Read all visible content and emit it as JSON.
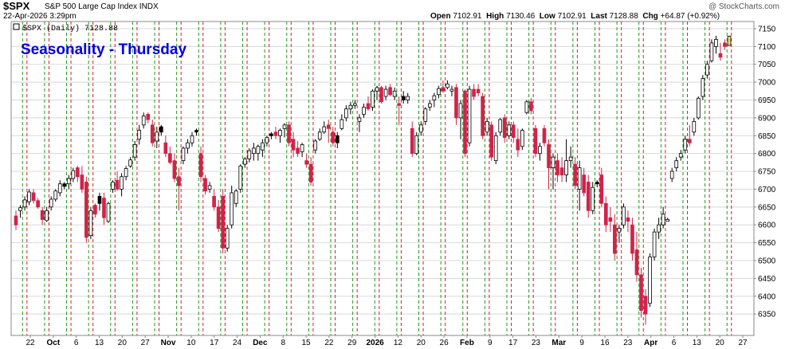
{
  "header": {
    "symbol": "$SPX",
    "name": "S&P 500 Large Cap Index",
    "exchange": "INDX",
    "copyright": "@ StockCharts.com",
    "date": "22-Apr-2026 3:29pm",
    "open_label": "Open",
    "open_value": "7102.91",
    "high_label": "High",
    "high_value": "7130.46",
    "low_label": "Low",
    "low_value": "7102.91",
    "last_label": "Last",
    "last_value": "7128.88",
    "chg_label": "Chg",
    "chg_value": "+64.87 (+0.92%)"
  },
  "legend": "$SPX (Daily) 7128.88",
  "chart_data": {
    "type": "candlestick",
    "title": "Seasonality - Thursday",
    "title_color": "#0000e6",
    "ylim": [
      6290,
      7170
    ],
    "y_ticks": [
      6350,
      6400,
      6450,
      6500,
      6550,
      6600,
      6650,
      6700,
      6750,
      6800,
      6850,
      6900,
      6950,
      7000,
      7050,
      7100,
      7150
    ],
    "x_labels": [
      {
        "label": "22",
        "bold": false
      },
      {
        "label": "Oct",
        "bold": true
      },
      {
        "label": "6",
        "bold": false
      },
      {
        "label": "13",
        "bold": false
      },
      {
        "label": "20",
        "bold": false
      },
      {
        "label": "27",
        "bold": false
      },
      {
        "label": "Nov",
        "bold": true
      },
      {
        "label": "10",
        "bold": false
      },
      {
        "label": "17",
        "bold": false
      },
      {
        "label": "24",
        "bold": false
      },
      {
        "label": "Dec",
        "bold": true
      },
      {
        "label": "8",
        "bold": false
      },
      {
        "label": "15",
        "bold": false
      },
      {
        "label": "22",
        "bold": false
      },
      {
        "label": "29",
        "bold": false
      },
      {
        "label": "2026",
        "bold": true
      },
      {
        "label": "12",
        "bold": false
      },
      {
        "label": "20",
        "bold": false
      },
      {
        "label": "26",
        "bold": false
      },
      {
        "label": "Feb",
        "bold": true
      },
      {
        "label": "9",
        "bold": false
      },
      {
        "label": "17",
        "bold": false
      },
      {
        "label": "23",
        "bold": false
      },
      {
        "label": "Mar",
        "bold": true
      },
      {
        "label": "9",
        "bold": false
      },
      {
        "label": "16",
        "bold": false
      },
      {
        "label": "23",
        "bold": false
      },
      {
        "label": "Apr",
        "bold": true
      },
      {
        "label": "6",
        "bold": false
      },
      {
        "label": "13",
        "bold": false
      },
      {
        "label": "20",
        "bold": false
      },
      {
        "label": "27",
        "bold": false
      }
    ],
    "colors": {
      "up": "#ffffff",
      "down": "#d1234a",
      "neutral": "#000000",
      "last": "#f2e07a",
      "green_line": "#1a9a1a",
      "red_line": "#d42020",
      "grid": "#d8d8d8"
    },
    "candles": [
      {
        "o": 6625,
        "h": 6640,
        "l": 6585,
        "c": 6600
      },
      {
        "o": 6640,
        "h": 6655,
        "l": 6620,
        "c": 6648
      },
      {
        "o": 6650,
        "h": 6680,
        "l": 6640,
        "c": 6670
      },
      {
        "o": 6665,
        "h": 6700,
        "l": 6655,
        "c": 6692
      },
      {
        "o": 6690,
        "h": 6700,
        "l": 6660,
        "c": 6668
      },
      {
        "o": 6668,
        "h": 6675,
        "l": 6645,
        "c": 6650
      },
      {
        "o": 6640,
        "h": 6650,
        "l": 6600,
        "c": 6615
      },
      {
        "o": 6612,
        "h": 6650,
        "l": 6608,
        "c": 6640
      },
      {
        "o": 6650,
        "h": 6680,
        "l": 6640,
        "c": 6672
      },
      {
        "o": 6672,
        "h": 6700,
        "l": 6665,
        "c": 6695
      },
      {
        "o": 6690,
        "h": 6725,
        "l": 6680,
        "c": 6715
      },
      {
        "o": 6715,
        "h": 6720,
        "l": 6700,
        "c": 6708,
        "n": true
      },
      {
        "o": 6715,
        "h": 6740,
        "l": 6700,
        "c": 6730
      },
      {
        "o": 6730,
        "h": 6760,
        "l": 6720,
        "c": 6752
      },
      {
        "o": 6760,
        "h": 6765,
        "l": 6720,
        "c": 6735
      },
      {
        "o": 6740,
        "h": 6765,
        "l": 6690,
        "c": 6700
      },
      {
        "o": 6720,
        "h": 6735,
        "l": 6550,
        "c": 6565
      },
      {
        "o": 6570,
        "h": 6650,
        "l": 6560,
        "c": 6640
      },
      {
        "o": 6655,
        "h": 6660,
        "l": 6620,
        "c": 6630
      },
      {
        "o": 6660,
        "h": 6690,
        "l": 6640,
        "c": 6680,
        "n": true
      },
      {
        "o": 6675,
        "h": 6690,
        "l": 6600,
        "c": 6620
      },
      {
        "o": 6610,
        "h": 6665,
        "l": 6605,
        "c": 6660
      },
      {
        "o": 6700,
        "h": 6725,
        "l": 6690,
        "c": 6720
      },
      {
        "o": 6725,
        "h": 6750,
        "l": 6695,
        "c": 6700
      },
      {
        "o": 6700,
        "h": 6745,
        "l": 6680,
        "c": 6735
      },
      {
        "o": 6735,
        "h": 6765,
        "l": 6725,
        "c": 6758
      },
      {
        "o": 6765,
        "h": 6790,
        "l": 6760,
        "c": 6782
      },
      {
        "o": 6790,
        "h": 6835,
        "l": 6780,
        "c": 6825
      },
      {
        "o": 6840,
        "h": 6880,
        "l": 6825,
        "c": 6865
      },
      {
        "o": 6880,
        "h": 6915,
        "l": 6870,
        "c": 6905
      },
      {
        "o": 6910,
        "h": 6915,
        "l": 6885,
        "c": 6895
      },
      {
        "o": 6880,
        "h": 6895,
        "l": 6820,
        "c": 6830
      },
      {
        "o": 6835,
        "h": 6875,
        "l": 6815,
        "c": 6860
      },
      {
        "o": 6860,
        "h": 6880,
        "l": 6850,
        "c": 6875,
        "n": true
      },
      {
        "o": 6830,
        "h": 6850,
        "l": 6790,
        "c": 6800
      },
      {
        "o": 6800,
        "h": 6820,
        "l": 6770,
        "c": 6775
      },
      {
        "o": 6780,
        "h": 6800,
        "l": 6720,
        "c": 6730
      },
      {
        "o": 6735,
        "h": 6760,
        "l": 6640,
        "c": 6710
      },
      {
        "o": 6780,
        "h": 6820,
        "l": 6770,
        "c": 6815
      },
      {
        "o": 6815,
        "h": 6840,
        "l": 6800,
        "c": 6830
      },
      {
        "o": 6830,
        "h": 6860,
        "l": 6820,
        "c": 6850
      },
      {
        "o": 6860,
        "h": 6870,
        "l": 6850,
        "c": 6865,
        "n": true
      },
      {
        "o": 6800,
        "h": 6820,
        "l": 6720,
        "c": 6735
      },
      {
        "o": 6730,
        "h": 6740,
        "l": 6685,
        "c": 6695
      },
      {
        "o": 6700,
        "h": 6720,
        "l": 6690,
        "c": 6710
      },
      {
        "o": 6680,
        "h": 6700,
        "l": 6640,
        "c": 6650
      },
      {
        "o": 6650,
        "h": 6670,
        "l": 6580,
        "c": 6590
      },
      {
        "o": 6680,
        "h": 6700,
        "l": 6520,
        "c": 6535
      },
      {
        "o": 6535,
        "h": 6600,
        "l": 6525,
        "c": 6590
      },
      {
        "o": 6600,
        "h": 6710,
        "l": 6590,
        "c": 6690
      },
      {
        "o": 6660,
        "h": 6700,
        "l": 6650,
        "c": 6695
      },
      {
        "o": 6700,
        "h": 6770,
        "l": 6690,
        "c": 6765
      },
      {
        "o": 6770,
        "h": 6790,
        "l": 6760,
        "c": 6785
      },
      {
        "o": 6785,
        "h": 6815,
        "l": 6775,
        "c": 6808
      },
      {
        "o": 6800,
        "h": 6830,
        "l": 6780,
        "c": 6815
      },
      {
        "o": 6800,
        "h": 6825,
        "l": 6780,
        "c": 6820
      },
      {
        "o": 6810,
        "h": 6840,
        "l": 6790,
        "c": 6830
      },
      {
        "o": 6830,
        "h": 6850,
        "l": 6820,
        "c": 6845
      },
      {
        "o": 6850,
        "h": 6860,
        "l": 6840,
        "c": 6855,
        "n": true
      },
      {
        "o": 6860,
        "h": 6875,
        "l": 6840,
        "c": 6850
      },
      {
        "o": 6850,
        "h": 6870,
        "l": 6830,
        "c": 6865
      },
      {
        "o": 6870,
        "h": 6885,
        "l": 6845,
        "c": 6880
      },
      {
        "o": 6880,
        "h": 6890,
        "l": 6820,
        "c": 6830
      },
      {
        "o": 6840,
        "h": 6860,
        "l": 6790,
        "c": 6810
      },
      {
        "o": 6815,
        "h": 6835,
        "l": 6790,
        "c": 6800
      },
      {
        "o": 6805,
        "h": 6830,
        "l": 6790,
        "c": 6825
      },
      {
        "o": 6780,
        "h": 6800,
        "l": 6760,
        "c": 6770
      },
      {
        "o": 6770,
        "h": 6790,
        "l": 6710,
        "c": 6720
      },
      {
        "o": 6810,
        "h": 6840,
        "l": 6800,
        "c": 6835
      },
      {
        "o": 6840,
        "h": 6870,
        "l": 6835,
        "c": 6860
      },
      {
        "o": 6860,
        "h": 6890,
        "l": 6855,
        "c": 6875
      },
      {
        "o": 6880,
        "h": 6895,
        "l": 6830,
        "c": 6870
      },
      {
        "o": 6860,
        "h": 6875,
        "l": 6820,
        "c": 6830
      },
      {
        "o": 6830,
        "h": 6860,
        "l": 6815,
        "c": 6850,
        "n": true
      },
      {
        "o": 6870,
        "h": 6910,
        "l": 6865,
        "c": 6895
      },
      {
        "o": 6900,
        "h": 6935,
        "l": 6890,
        "c": 6925
      },
      {
        "o": 6925,
        "h": 6945,
        "l": 6910,
        "c": 6935
      },
      {
        "o": 6935,
        "h": 6950,
        "l": 6925,
        "c": 6940
      },
      {
        "o": 6890,
        "h": 6910,
        "l": 6860,
        "c": 6900
      },
      {
        "o": 6910,
        "h": 6940,
        "l": 6900,
        "c": 6930
      },
      {
        "o": 6940,
        "h": 6960,
        "l": 6920,
        "c": 6925
      },
      {
        "o": 6930,
        "h": 6980,
        "l": 6920,
        "c": 6975
      },
      {
        "o": 6975,
        "h": 6990,
        "l": 6950,
        "c": 6985
      },
      {
        "o": 6985,
        "h": 6990,
        "l": 6940,
        "c": 6945
      },
      {
        "o": 6960,
        "h": 6990,
        "l": 6950,
        "c": 6980
      },
      {
        "o": 6985,
        "h": 6995,
        "l": 6960,
        "c": 6965
      },
      {
        "o": 6960,
        "h": 6985,
        "l": 6950,
        "c": 6975
      },
      {
        "o": 6940,
        "h": 6960,
        "l": 6880,
        "c": 6935
      },
      {
        "o": 6960,
        "h": 6975,
        "l": 6940,
        "c": 6950,
        "n": true
      },
      {
        "o": 6950,
        "h": 6970,
        "l": 6940,
        "c": 6960
      },
      {
        "o": 6870,
        "h": 6890,
        "l": 6790,
        "c": 6800
      },
      {
        "o": 6800,
        "h": 6860,
        "l": 6795,
        "c": 6850
      },
      {
        "o": 6860,
        "h": 6890,
        "l": 6850,
        "c": 6880
      },
      {
        "o": 6890,
        "h": 6930,
        "l": 6880,
        "c": 6925
      },
      {
        "o": 6930,
        "h": 6950,
        "l": 6920,
        "c": 6940
      },
      {
        "o": 6950,
        "h": 6970,
        "l": 6930,
        "c": 6962
      },
      {
        "o": 6965,
        "h": 6990,
        "l": 6955,
        "c": 6982
      },
      {
        "o": 6985,
        "h": 7005,
        "l": 6970,
        "c": 6975
      },
      {
        "o": 6985,
        "h": 7005,
        "l": 6980,
        "c": 6995
      },
      {
        "o": 6975,
        "h": 6990,
        "l": 6960,
        "c": 6980
      },
      {
        "o": 6985,
        "h": 6995,
        "l": 6880,
        "c": 6900
      },
      {
        "o": 6900,
        "h": 6950,
        "l": 6840,
        "c": 6940
      },
      {
        "o": 6975,
        "h": 6980,
        "l": 6790,
        "c": 6800
      },
      {
        "o": 6830,
        "h": 6990,
        "l": 6820,
        "c": 6980
      },
      {
        "o": 6980,
        "h": 6995,
        "l": 6950,
        "c": 6960
      },
      {
        "o": 6980,
        "h": 6995,
        "l": 6960,
        "c": 6970
      },
      {
        "o": 6960,
        "h": 6970,
        "l": 6840,
        "c": 6850
      },
      {
        "o": 6860,
        "h": 6900,
        "l": 6850,
        "c": 6890
      },
      {
        "o": 6880,
        "h": 6890,
        "l": 6780,
        "c": 6790
      },
      {
        "o": 6780,
        "h": 6860,
        "l": 6770,
        "c": 6850
      },
      {
        "o": 6860,
        "h": 6900,
        "l": 6850,
        "c": 6895
      },
      {
        "o": 6900,
        "h": 6910,
        "l": 6830,
        "c": 6845
      },
      {
        "o": 6850,
        "h": 6890,
        "l": 6840,
        "c": 6880
      },
      {
        "o": 6880,
        "h": 6890,
        "l": 6830,
        "c": 6845
      },
      {
        "o": 6840,
        "h": 6870,
        "l": 6790,
        "c": 6810
      },
      {
        "o": 6820,
        "h": 6870,
        "l": 6810,
        "c": 6865
      },
      {
        "o": 6915,
        "h": 6950,
        "l": 6910,
        "c": 6945
      },
      {
        "o": 6945,
        "h": 6955,
        "l": 6910,
        "c": 6920
      },
      {
        "o": 6870,
        "h": 6880,
        "l": 6790,
        "c": 6800
      },
      {
        "o": 6800,
        "h": 6830,
        "l": 6780,
        "c": 6820
      },
      {
        "o": 6870,
        "h": 6880,
        "l": 6820,
        "c": 6830
      },
      {
        "o": 6825,
        "h": 6840,
        "l": 6700,
        "c": 6760
      },
      {
        "o": 6760,
        "h": 6800,
        "l": 6700,
        "c": 6790
      },
      {
        "o": 6780,
        "h": 6800,
        "l": 6720,
        "c": 6740
      },
      {
        "o": 6760,
        "h": 6790,
        "l": 6720,
        "c": 6740
      },
      {
        "o": 6740,
        "h": 6840,
        "l": 6720,
        "c": 6780
      },
      {
        "o": 6780,
        "h": 6820,
        "l": 6760,
        "c": 6790
      },
      {
        "o": 6770,
        "h": 6790,
        "l": 6700,
        "c": 6710
      },
      {
        "o": 6700,
        "h": 6780,
        "l": 6640,
        "c": 6760
      },
      {
        "o": 6740,
        "h": 6760,
        "l": 6680,
        "c": 6690
      },
      {
        "o": 6720,
        "h": 6740,
        "l": 6620,
        "c": 6640
      },
      {
        "o": 6640,
        "h": 6720,
        "l": 6630,
        "c": 6705
      },
      {
        "o": 6715,
        "h": 6725,
        "l": 6705,
        "c": 6720,
        "n": true
      },
      {
        "o": 6740,
        "h": 6760,
        "l": 6650,
        "c": 6660
      },
      {
        "o": 6660,
        "h": 6680,
        "l": 6580,
        "c": 6600
      },
      {
        "o": 6620,
        "h": 6650,
        "l": 6580,
        "c": 6610
      },
      {
        "o": 6600,
        "h": 6630,
        "l": 6500,
        "c": 6520
      },
      {
        "o": 6580,
        "h": 6600,
        "l": 6550,
        "c": 6590
      },
      {
        "o": 6600,
        "h": 6660,
        "l": 6590,
        "c": 6650
      },
      {
        "o": 6620,
        "h": 6640,
        "l": 6580,
        "c": 6610
      },
      {
        "o": 6600,
        "h": 6620,
        "l": 6500,
        "c": 6520
      },
      {
        "o": 6530,
        "h": 6580,
        "l": 6440,
        "c": 6460
      },
      {
        "o": 6460,
        "h": 6480,
        "l": 6340,
        "c": 6360
      },
      {
        "o": 6400,
        "h": 6420,
        "l": 6320,
        "c": 6350
      },
      {
        "o": 6380,
        "h": 6520,
        "l": 6370,
        "c": 6510
      },
      {
        "o": 6510,
        "h": 6590,
        "l": 6500,
        "c": 6580
      },
      {
        "o": 6580,
        "h": 6620,
        "l": 6560,
        "c": 6600
      },
      {
        "o": 6600,
        "h": 6650,
        "l": 6590,
        "c": 6630
      },
      {
        "o": 6610,
        "h": 6620,
        "l": 6610,
        "c": 6615
      },
      {
        "o": 6730,
        "h": 6760,
        "l": 6720,
        "c": 6750
      },
      {
        "o": 6760,
        "h": 6790,
        "l": 6750,
        "c": 6780
      },
      {
        "o": 6790,
        "h": 6810,
        "l": 6780,
        "c": 6800
      },
      {
        "o": 6810,
        "h": 6850,
        "l": 6800,
        "c": 6840
      },
      {
        "o": 6840,
        "h": 6880,
        "l": 6820,
        "c": 6830
      },
      {
        "o": 6860,
        "h": 6900,
        "l": 6850,
        "c": 6890
      },
      {
        "o": 6900,
        "h": 6960,
        "l": 6895,
        "c": 6955
      },
      {
        "o": 6960,
        "h": 7020,
        "l": 6950,
        "c": 7010
      },
      {
        "o": 7020,
        "h": 7060,
        "l": 7010,
        "c": 7050
      },
      {
        "o": 7060,
        "h": 7120,
        "l": 7055,
        "c": 7110
      },
      {
        "o": 7100,
        "h": 7130,
        "l": 7080,
        "c": 7120
      },
      {
        "o": 7080,
        "h": 7110,
        "l": 7060,
        "c": 7070
      },
      {
        "o": 7110,
        "h": 7120,
        "l": 7090,
        "c": 7100
      },
      {
        "o": 7102.91,
        "h": 7130.46,
        "l": 7102.91,
        "c": 7128.88,
        "last": true
      }
    ]
  }
}
